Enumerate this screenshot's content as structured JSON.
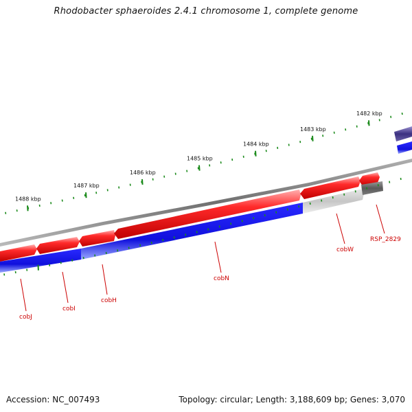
{
  "title": "Rhodobacter sphaeroides 2.4.1 chromosome 1, complete genome",
  "accession": "Accession: NC_007493",
  "topology": "Topology: circular; Length: 3,188,609 bp; Genes: 3,070",
  "colors": {
    "backbone": "#888888",
    "forward_gene": "#ee1111",
    "reverse_gene": "#1a1aee",
    "other_gene": "#c8c8c8",
    "pseudo_gene": "#666666",
    "tick": "#1a8a1a",
    "label": "#cc0000",
    "purple_gene": "#4a3f8f"
  },
  "ruler": {
    "ticks": [
      {
        "label": "1488 kbp"
      },
      {
        "label": "1487 kbp"
      },
      {
        "label": "1486 kbp"
      },
      {
        "label": "1485 kbp"
      },
      {
        "label": "1484 kbp"
      },
      {
        "label": "1483 kbp"
      },
      {
        "label": "1482 kbp"
      }
    ]
  },
  "genes": [
    {
      "name": "cobJ"
    },
    {
      "name": "cobI"
    },
    {
      "name": "cobH"
    },
    {
      "name": "cobN"
    },
    {
      "name": "cobW"
    },
    {
      "name": "RSP_2829"
    }
  ]
}
